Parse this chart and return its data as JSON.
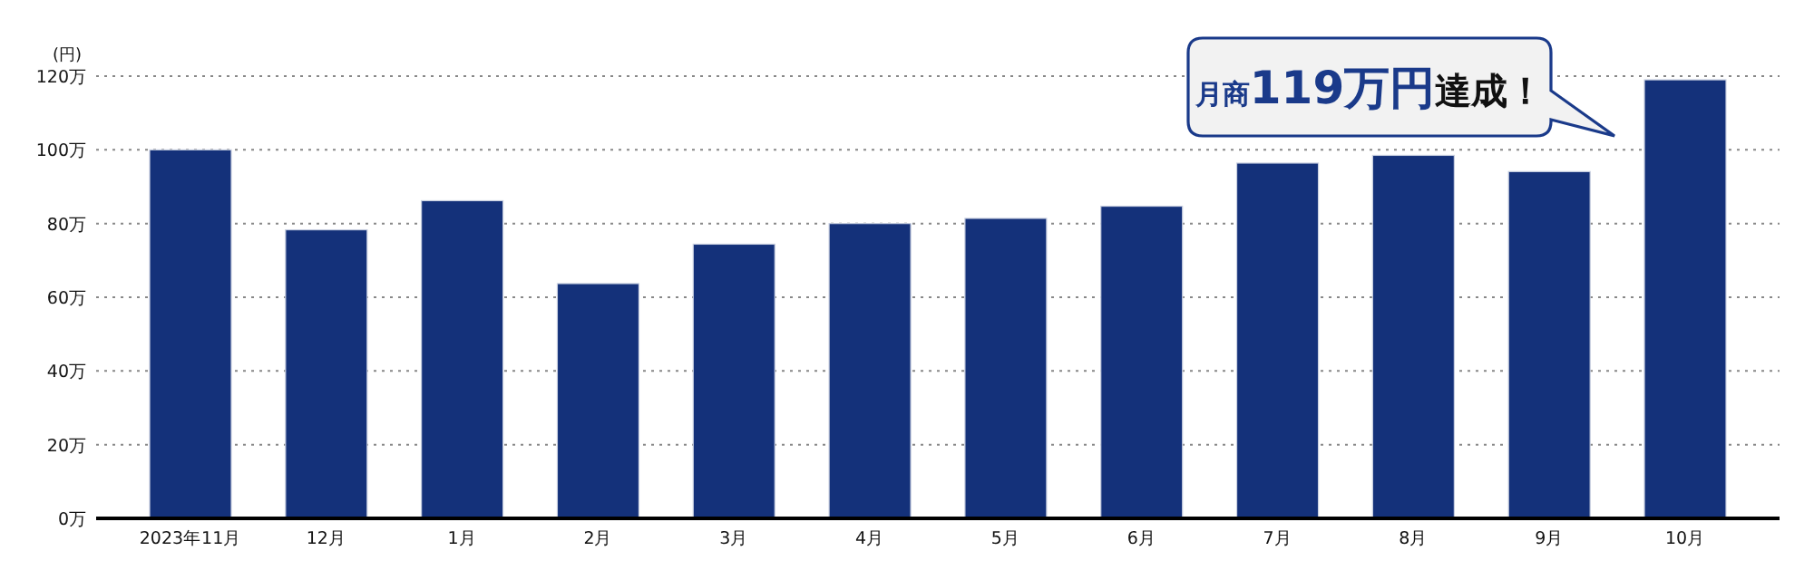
{
  "chart_data": {
    "type": "bar",
    "ylabel": "(円)",
    "categories": [
      "2023年11月",
      "12月",
      "1月",
      "2月",
      "3月",
      "4月",
      "5月",
      "6月",
      "7月",
      "8月",
      "9月",
      "10月"
    ],
    "values": [
      100,
      78.3,
      86.2,
      63.7,
      74.4,
      80,
      81.4,
      84.7,
      96.4,
      98.5,
      94.1,
      119
    ],
    "color": "#14317a",
    "ylim": [
      0,
      120
    ],
    "yticks": [
      {
        "value": 0,
        "label": "0万"
      },
      {
        "value": 20,
        "label": "20万"
      },
      {
        "value": 40,
        "label": "40万"
      },
      {
        "value": 60,
        "label": "60万"
      },
      {
        "value": 80,
        "label": "80万"
      },
      {
        "value": 100,
        "label": "100万"
      },
      {
        "value": 120,
        "label": "120万"
      }
    ],
    "grid": "y",
    "annotations": [
      "月商**119万円**達成！"
    ]
  }
}
